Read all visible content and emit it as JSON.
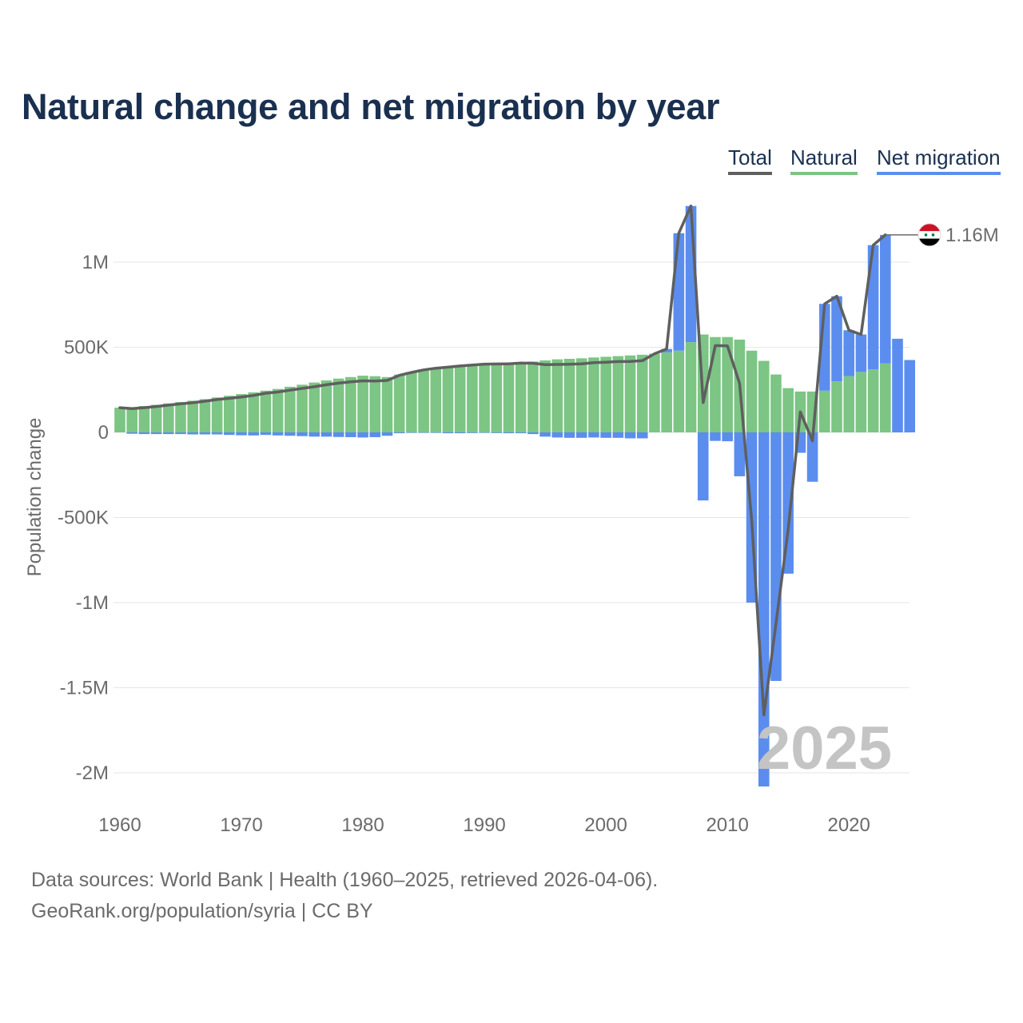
{
  "chart_data": {
    "type": "bar",
    "title": "Natural change and net migration by year",
    "xlabel": "",
    "ylabel": "Population change",
    "ylim": [
      -2100000,
      1350000
    ],
    "xlim": [
      1960,
      2025
    ],
    "yticks": [
      1000000,
      500000,
      0,
      -500000,
      -1000000,
      -1500000,
      -2000000
    ],
    "ytick_labels": [
      "1M",
      "500K",
      "0",
      "-500K",
      "-1M",
      "-1.5M",
      "-2M"
    ],
    "xticks": [
      1960,
      1970,
      1980,
      1990,
      2000,
      2010,
      2020
    ],
    "xtick_labels": [
      "1960",
      "1970",
      "1980",
      "1990",
      "2000",
      "2010",
      "2020"
    ],
    "legend": [
      "Total",
      "Natural",
      "Net migration"
    ],
    "legend_position": "top-right",
    "watermark_year": "2025",
    "end_label": "1.16M",
    "colors": {
      "total": "#5f5f5f",
      "natural": "#7cc584",
      "migration": "#5b8def",
      "title": "#1a3050"
    },
    "years": [
      1960,
      1961,
      1962,
      1963,
      1964,
      1965,
      1966,
      1967,
      1968,
      1969,
      1970,
      1971,
      1972,
      1973,
      1974,
      1975,
      1976,
      1977,
      1978,
      1979,
      1980,
      1981,
      1982,
      1983,
      1984,
      1985,
      1986,
      1987,
      1988,
      1989,
      1990,
      1991,
      1992,
      1993,
      1994,
      1995,
      1996,
      1997,
      1998,
      1999,
      2000,
      2001,
      2002,
      2003,
      2004,
      2005,
      2006,
      2007,
      2008,
      2009,
      2010,
      2011,
      2012,
      2013,
      2014,
      2015,
      2016,
      2017,
      2018,
      2019,
      2020,
      2021,
      2022,
      2023,
      2024,
      2025
    ],
    "series": [
      {
        "name": "Natural",
        "values": [
          145000,
          148000,
          155000,
          162000,
          170000,
          178000,
          186000,
          195000,
          205000,
          215000,
          225000,
          235000,
          245000,
          255000,
          268000,
          280000,
          293000,
          305000,
          316000,
          325000,
          333000,
          330000,
          325000,
          340000,
          355000,
          370000,
          380000,
          388000,
          395000,
          400000,
          404000,
          406000,
          408000,
          412000,
          416000,
          423000,
          429000,
          432000,
          435000,
          440000,
          444000,
          448000,
          452000,
          456000,
          462000,
          470000,
          480000,
          530000,
          575000,
          560000,
          560000,
          545000,
          480000,
          420000,
          340000,
          260000,
          240000,
          240000,
          245000,
          300000,
          330000,
          355000,
          370000,
          405000,
          0,
          0
        ]
      },
      {
        "name": "Net migration",
        "values": [
          0,
          -8000,
          -10000,
          -10000,
          -10000,
          -10000,
          -12000,
          -12000,
          -12000,
          -15000,
          -17000,
          -18000,
          -15000,
          -18000,
          -20000,
          -22000,
          -25000,
          -25000,
          -27000,
          -28000,
          -30000,
          -28000,
          -20000,
          -5000,
          -3000,
          -3000,
          -3000,
          -5000,
          -5000,
          -4000,
          -3000,
          -4000,
          -5000,
          -5000,
          -10000,
          -25000,
          -30000,
          -32000,
          -32000,
          -30000,
          -32000,
          -32000,
          -35000,
          -35000,
          0,
          20000,
          690000,
          800000,
          -400000,
          -50000,
          -52000,
          -258000,
          -1000000,
          -2080000,
          -1460000,
          -830000,
          -120000,
          -290000,
          510000,
          500000,
          270000,
          220000,
          730000,
          755000,
          550000,
          425000
        ]
      },
      {
        "name": "Total",
        "values": [
          145000,
          140000,
          145000,
          152000,
          160000,
          168000,
          174000,
          183000,
          193000,
          200000,
          208000,
          217000,
          230000,
          237000,
          248000,
          258000,
          268000,
          280000,
          289000,
          297000,
          303000,
          302000,
          305000,
          335000,
          352000,
          367000,
          377000,
          383000,
          390000,
          396000,
          401000,
          402000,
          403000,
          407000,
          406000,
          398000,
          399000,
          400000,
          403000,
          410000,
          412000,
          416000,
          417000,
          421000,
          462000,
          490000,
          1170000,
          1330000,
          175000,
          510000,
          508000,
          287000,
          -520000,
          -1660000,
          -1120000,
          -570000,
          120000,
          -50000,
          755000,
          800000,
          600000,
          575000,
          1100000,
          1160000,
          null,
          null
        ]
      }
    ]
  },
  "footer": {
    "line1": "Data sources: World Bank | Health (1960–2025, retrieved 2026-04-06).",
    "line2": "GeoRank.org/population/syria | CC BY"
  }
}
